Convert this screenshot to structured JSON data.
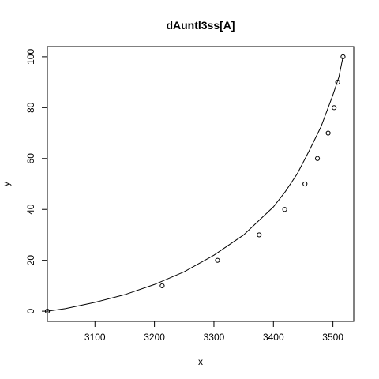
{
  "chart_data": {
    "type": "scatter",
    "title": "dAuntl3ss[A]",
    "xlabel": "x",
    "ylabel": "y",
    "xlim": [
      3020,
      3535
    ],
    "ylim": [
      -4,
      104
    ],
    "xticks": [
      3100,
      3200,
      3300,
      3400,
      3500
    ],
    "yticks": [
      0,
      20,
      40,
      60,
      80,
      100
    ],
    "grid": false,
    "legend": "none",
    "series": [
      {
        "kind": "points",
        "x": [
          3020,
          3213,
          3306,
          3376,
          3419,
          3453,
          3474,
          3492,
          3502,
          3508,
          3517
        ],
        "y": [
          0,
          10,
          20,
          30,
          40,
          50,
          60,
          70,
          80,
          90,
          100
        ]
      },
      {
        "kind": "fitted-line",
        "x": [
          3020,
          3050,
          3100,
          3150,
          3200,
          3250,
          3300,
          3350,
          3400,
          3420,
          3440,
          3460,
          3480,
          3500,
          3510,
          3517
        ],
        "y": [
          0,
          1,
          3.5,
          6.5,
          10.5,
          15.5,
          22,
          30,
          41,
          47,
          54,
          63,
          72.5,
          85,
          92,
          100
        ]
      }
    ]
  }
}
